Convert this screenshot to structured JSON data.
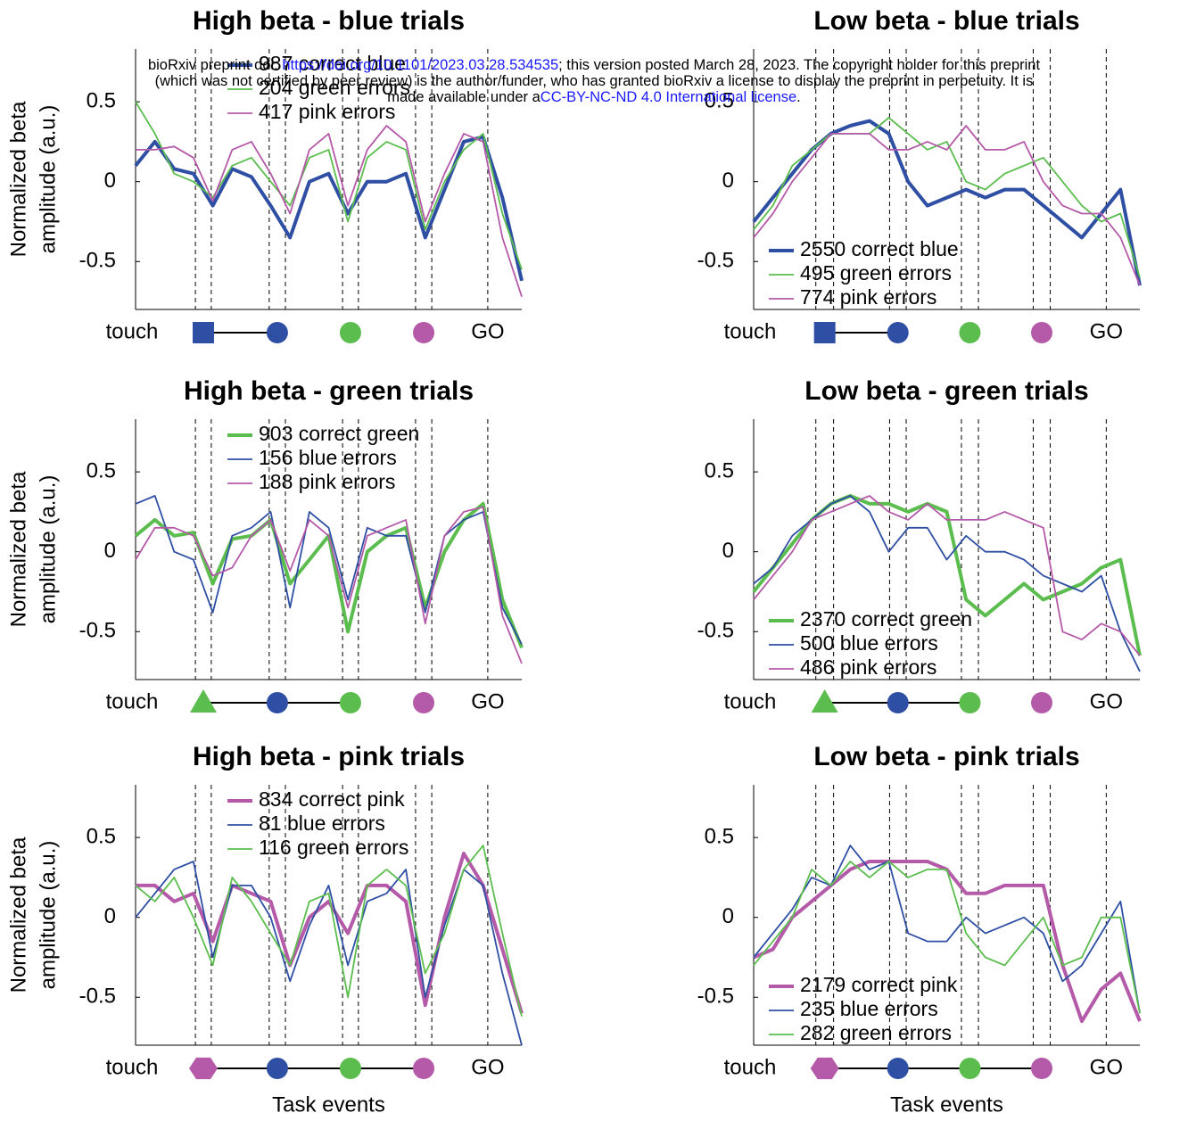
{
  "header": {
    "line1_a": "bioRxiv preprint doi: ",
    "doi": "https://doi.org/10.1101/2023.03.28.534535",
    "line1_b": "; this version posted March 28, 2023. The copyright holder for this preprint",
    "line2": "(which was not certified by peer review) is the author/funder, who has granted bioRxiv a license to display the preprint in perpetuity. It is",
    "line3_a": "made available under a",
    "license": "CC-BY-NC-ND 4.0 International license",
    "line3_b": "."
  },
  "chart_data": [
    {
      "type": "line",
      "title": "High beta - blue trials",
      "ylabel": [
        "Normalized beta",
        "amplitude (a.u.)"
      ],
      "legend": "upper center",
      "x": [
        0,
        5,
        10,
        15,
        20,
        25,
        30,
        35,
        40,
        45,
        50,
        55,
        60,
        65,
        70,
        75,
        80,
        85,
        90,
        95,
        100
      ],
      "xlim": [
        0,
        100
      ],
      "ylim": [
        -0.8,
        0.83
      ],
      "yticks": [
        -0.5,
        0,
        0.5
      ],
      "vlines": [
        15.5,
        19.6,
        34.6,
        38.8,
        53.6,
        57.7,
        72.5,
        76.7,
        91.2
      ],
      "event_labels": [
        "touch",
        "GO"
      ],
      "markers": [
        {
          "shape": "square",
          "color": "#2e4fa3"
        },
        {
          "shape": "circle",
          "color": "#2e4fa3"
        },
        {
          "shape": "circle",
          "color": "#5cbd4f"
        },
        {
          "shape": "circle",
          "color": "#b45aa8"
        }
      ],
      "linked": 2,
      "series": [
        {
          "name": "987 correct blue",
          "color": "#2e4fa3",
          "values": [
            0.1,
            0.25,
            0.08,
            0.05,
            -0.15,
            0.08,
            0.03,
            -0.15,
            -0.35,
            0.0,
            0.05,
            -0.2,
            0.0,
            0.0,
            0.05,
            -0.35,
            -0.05,
            0.25,
            0.28,
            -0.1,
            -0.62
          ]
        },
        {
          "name": "204 green errors",
          "color": "#5cbd4f",
          "values": [
            0.5,
            0.3,
            0.05,
            0.0,
            -0.1,
            0.1,
            0.15,
            0.0,
            -0.15,
            0.15,
            0.2,
            -0.25,
            0.15,
            0.25,
            0.2,
            -0.3,
            0.0,
            0.2,
            0.3,
            -0.2,
            -0.55
          ]
        },
        {
          "name": "417 pink errors",
          "color": "#b45aa8",
          "values": [
            0.2,
            0.2,
            0.22,
            0.15,
            -0.12,
            0.2,
            0.25,
            0.05,
            -0.2,
            0.2,
            0.3,
            -0.15,
            0.2,
            0.35,
            0.25,
            -0.25,
            0.05,
            0.3,
            0.25,
            -0.35,
            -0.72
          ]
        }
      ]
    },
    {
      "type": "line",
      "title": "Low beta - blue trials",
      "legend": "lower left",
      "x": [
        0,
        5,
        10,
        15,
        20,
        25,
        30,
        35,
        40,
        45,
        50,
        55,
        60,
        65,
        70,
        75,
        80,
        85,
        90,
        95,
        100
      ],
      "xlim": [
        0,
        100
      ],
      "ylim": [
        -0.8,
        0.83
      ],
      "yticks": [
        -0.5,
        0,
        0.5
      ],
      "vlines": [
        16.1,
        20.7,
        35.2,
        39.5,
        53.8,
        58.2,
        72.4,
        76.8,
        91.3
      ],
      "event_labels": [
        "touch",
        "GO"
      ],
      "markers": [
        {
          "shape": "square",
          "color": "#2e4fa3"
        },
        {
          "shape": "circle",
          "color": "#2e4fa3"
        },
        {
          "shape": "circle",
          "color": "#5cbd4f"
        },
        {
          "shape": "circle",
          "color": "#b45aa8"
        }
      ],
      "linked": 2,
      "series": [
        {
          "name": "2550 correct blue",
          "color": "#2e4fa3",
          "values": [
            -0.25,
            -0.1,
            0.05,
            0.2,
            0.3,
            0.35,
            0.38,
            0.3,
            0.0,
            -0.15,
            -0.1,
            -0.05,
            -0.1,
            -0.05,
            -0.05,
            -0.15,
            -0.25,
            -0.35,
            -0.2,
            -0.05,
            -0.65
          ]
        },
        {
          "name": "495 green errors",
          "color": "#5cbd4f",
          "values": [
            -0.3,
            -0.15,
            0.1,
            0.2,
            0.3,
            0.3,
            0.3,
            0.4,
            0.3,
            0.2,
            0.25,
            0.0,
            -0.05,
            0.05,
            0.1,
            0.15,
            0.0,
            -0.15,
            -0.25,
            -0.2,
            -0.6
          ]
        },
        {
          "name": "774 pink errors",
          "color": "#b45aa8",
          "values": [
            -0.35,
            -0.2,
            0.0,
            0.15,
            0.3,
            0.3,
            0.3,
            0.2,
            0.2,
            0.25,
            0.2,
            0.35,
            0.2,
            0.2,
            0.25,
            0.0,
            -0.15,
            -0.2,
            -0.2,
            -0.35,
            -0.65
          ]
        }
      ]
    },
    {
      "type": "line",
      "title": "High beta - green trials",
      "ylabel": [
        "Normalized beta",
        "amplitude (a.u.)"
      ],
      "legend": "upper center",
      "x": [
        0,
        5,
        10,
        15,
        20,
        25,
        30,
        35,
        40,
        45,
        50,
        55,
        60,
        65,
        70,
        75,
        80,
        85,
        90,
        95,
        100
      ],
      "xlim": [
        0,
        100
      ],
      "ylim": [
        -0.8,
        0.83
      ],
      "yticks": [
        -0.5,
        0,
        0.5
      ],
      "vlines": [
        15.5,
        19.6,
        34.6,
        38.8,
        53.6,
        57.7,
        72.5,
        76.7,
        91.2
      ],
      "event_labels": [
        "touch",
        "GO"
      ],
      "markers": [
        {
          "shape": "triangle",
          "color": "#5cbd4f"
        },
        {
          "shape": "circle",
          "color": "#2e4fa3"
        },
        {
          "shape": "circle",
          "color": "#5cbd4f"
        },
        {
          "shape": "circle",
          "color": "#b45aa8"
        }
      ],
      "linked": 3,
      "series": [
        {
          "name": "903 correct green",
          "color": "#5cbd4f",
          "values": [
            0.1,
            0.2,
            0.1,
            0.12,
            -0.2,
            0.08,
            0.1,
            0.2,
            -0.2,
            -0.05,
            0.1,
            -0.5,
            0.0,
            0.1,
            0.15,
            -0.35,
            0.0,
            0.2,
            0.3,
            -0.3,
            -0.6
          ]
        },
        {
          "name": "156 blue errors",
          "color": "#2e4fa3",
          "values": [
            0.3,
            0.35,
            0.0,
            -0.05,
            -0.38,
            0.1,
            0.15,
            0.25,
            -0.35,
            0.25,
            0.15,
            -0.3,
            0.15,
            0.1,
            0.1,
            -0.38,
            0.1,
            0.2,
            0.25,
            -0.35,
            -0.58
          ]
        },
        {
          "name": "188 pink errors",
          "color": "#b45aa8",
          "values": [
            -0.05,
            0.15,
            0.15,
            0.1,
            -0.15,
            -0.1,
            0.1,
            0.2,
            -0.12,
            0.2,
            0.1,
            -0.35,
            0.1,
            0.15,
            0.2,
            -0.45,
            0.1,
            0.25,
            0.28,
            -0.4,
            -0.7
          ]
        }
      ]
    },
    {
      "type": "line",
      "title": "Low beta - green trials",
      "legend": "lower left",
      "x": [
        0,
        5,
        10,
        15,
        20,
        25,
        30,
        35,
        40,
        45,
        50,
        55,
        60,
        65,
        70,
        75,
        80,
        85,
        90,
        95,
        100
      ],
      "xlim": [
        0,
        100
      ],
      "ylim": [
        -0.8,
        0.83
      ],
      "yticks": [
        -0.5,
        0,
        0.5
      ],
      "vlines": [
        16.1,
        20.7,
        35.2,
        39.5,
        53.8,
        58.2,
        72.4,
        76.8,
        91.3
      ],
      "event_labels": [
        "touch",
        "GO"
      ],
      "markers": [
        {
          "shape": "triangle",
          "color": "#5cbd4f"
        },
        {
          "shape": "circle",
          "color": "#2e4fa3"
        },
        {
          "shape": "circle",
          "color": "#5cbd4f"
        },
        {
          "shape": "circle",
          "color": "#b45aa8"
        }
      ],
      "linked": 3,
      "series": [
        {
          "name": "2370 correct green",
          "color": "#5cbd4f",
          "values": [
            -0.25,
            -0.1,
            0.05,
            0.2,
            0.3,
            0.35,
            0.3,
            0.3,
            0.25,
            0.3,
            0.25,
            -0.3,
            -0.4,
            -0.3,
            -0.2,
            -0.3,
            -0.25,
            -0.2,
            -0.1,
            -0.05,
            -0.65
          ]
        },
        {
          "name": "500 blue errors",
          "color": "#2e4fa3",
          "values": [
            -0.2,
            -0.1,
            0.1,
            0.2,
            0.3,
            0.35,
            0.25,
            0.0,
            0.15,
            0.15,
            -0.05,
            0.1,
            0.0,
            0.0,
            -0.05,
            -0.15,
            -0.2,
            -0.25,
            -0.15,
            -0.5,
            -0.75
          ]
        },
        {
          "name": "486 pink errors",
          "color": "#b45aa8",
          "values": [
            -0.3,
            -0.15,
            0.0,
            0.2,
            0.25,
            0.3,
            0.35,
            0.25,
            0.2,
            0.3,
            0.2,
            0.2,
            0.2,
            0.25,
            0.2,
            0.15,
            -0.5,
            -0.55,
            -0.45,
            -0.5,
            -0.65
          ]
        }
      ]
    },
    {
      "type": "line",
      "title": "High beta - pink trials",
      "ylabel": [
        "Normalized beta",
        "amplitude (a.u.)"
      ],
      "xlabel": "Task events",
      "legend": "upper center",
      "x": [
        0,
        5,
        10,
        15,
        20,
        25,
        30,
        35,
        40,
        45,
        50,
        55,
        60,
        65,
        70,
        75,
        80,
        85,
        90,
        95,
        100
      ],
      "xlim": [
        0,
        100
      ],
      "ylim": [
        -0.8,
        0.83
      ],
      "yticks": [
        -0.5,
        0,
        0.5
      ],
      "vlines": [
        15.5,
        19.6,
        34.6,
        38.8,
        53.6,
        57.7,
        72.5,
        76.7,
        91.2
      ],
      "event_labels": [
        "touch",
        "GO"
      ],
      "markers": [
        {
          "shape": "hexagon",
          "color": "#b45aa8"
        },
        {
          "shape": "circle",
          "color": "#2e4fa3"
        },
        {
          "shape": "circle",
          "color": "#5cbd4f"
        },
        {
          "shape": "circle",
          "color": "#b45aa8"
        }
      ],
      "linked": 4,
      "series": [
        {
          "name": "834 correct pink",
          "color": "#b45aa8",
          "values": [
            0.2,
            0.2,
            0.1,
            0.15,
            -0.15,
            0.2,
            0.15,
            0.1,
            -0.3,
            0.0,
            0.1,
            -0.1,
            0.2,
            0.2,
            0.1,
            -0.55,
            0.0,
            0.4,
            0.2,
            -0.2,
            -0.6
          ]
        },
        {
          "name": "81 blue errors",
          "color": "#2e4fa3",
          "values": [
            0.0,
            0.15,
            0.3,
            0.35,
            -0.25,
            0.2,
            0.2,
            0.0,
            -0.4,
            -0.05,
            0.2,
            -0.3,
            0.1,
            0.15,
            0.3,
            -0.5,
            -0.05,
            0.3,
            0.2,
            -0.35,
            -0.8
          ]
        },
        {
          "name": "116 green errors",
          "color": "#5cbd4f",
          "values": [
            0.2,
            0.1,
            0.25,
            0.0,
            -0.3,
            0.25,
            0.1,
            -0.1,
            -0.3,
            0.1,
            0.15,
            -0.5,
            0.2,
            0.3,
            0.2,
            -0.35,
            -0.1,
            0.3,
            0.45,
            -0.1,
            -0.62
          ]
        }
      ]
    },
    {
      "type": "line",
      "title": "Low beta - pink trials",
      "xlabel": "Task events",
      "legend": "lower left",
      "x": [
        0,
        5,
        10,
        15,
        20,
        25,
        30,
        35,
        40,
        45,
        50,
        55,
        60,
        65,
        70,
        75,
        80,
        85,
        90,
        95,
        100
      ],
      "xlim": [
        0,
        100
      ],
      "ylim": [
        -0.8,
        0.83
      ],
      "yticks": [
        -0.5,
        0,
        0.5
      ],
      "vlines": [
        16.1,
        20.7,
        35.2,
        39.5,
        53.8,
        58.2,
        72.4,
        76.8,
        91.3
      ],
      "event_labels": [
        "touch",
        "GO"
      ],
      "markers": [
        {
          "shape": "hexagon",
          "color": "#b45aa8"
        },
        {
          "shape": "circle",
          "color": "#2e4fa3"
        },
        {
          "shape": "circle",
          "color": "#5cbd4f"
        },
        {
          "shape": "circle",
          "color": "#b45aa8"
        }
      ],
      "linked": 4,
      "series": [
        {
          "name": "2179 correct pink",
          "color": "#b45aa8",
          "values": [
            -0.25,
            -0.2,
            0.0,
            0.1,
            0.2,
            0.3,
            0.35,
            0.35,
            0.35,
            0.35,
            0.3,
            0.15,
            0.15,
            0.2,
            0.2,
            0.2,
            -0.3,
            -0.65,
            -0.45,
            -0.35,
            -0.65
          ]
        },
        {
          "name": "235 blue errors",
          "color": "#2e4fa3",
          "values": [
            -0.25,
            -0.1,
            0.05,
            0.25,
            0.2,
            0.45,
            0.3,
            0.35,
            -0.1,
            -0.15,
            -0.15,
            0.0,
            -0.1,
            -0.05,
            0.0,
            -0.1,
            -0.4,
            -0.3,
            -0.1,
            0.1,
            -0.6
          ]
        },
        {
          "name": "282 green errors",
          "color": "#5cbd4f",
          "values": [
            -0.3,
            -0.15,
            0.0,
            0.3,
            0.2,
            0.35,
            0.25,
            0.35,
            0.25,
            0.3,
            0.3,
            -0.1,
            -0.25,
            -0.3,
            -0.15,
            0.0,
            -0.3,
            -0.25,
            0.0,
            0.0,
            -0.6
          ]
        }
      ]
    }
  ]
}
